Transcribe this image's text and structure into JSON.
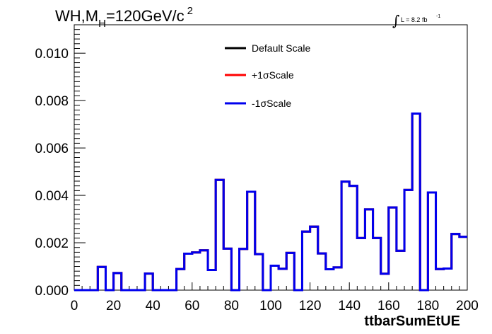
{
  "title": {
    "main": "WH,M",
    "sub": "H",
    "rest": "=120GeV/c",
    "sup": "2"
  },
  "lumi": {
    "symbol": "∫",
    "text": "L = 8.2 fb",
    "sup": "-1"
  },
  "chart_data": {
    "type": "histogram-step",
    "xlabel": "ttbarSumEtUE",
    "ylabel": "",
    "xlim": [
      0,
      200
    ],
    "ylim": [
      0,
      0.0112
    ],
    "x_ticks": [
      0,
      20,
      40,
      60,
      80,
      100,
      120,
      140,
      160,
      180,
      200
    ],
    "x_tick_labels": [
      "0",
      "20",
      "40",
      "60",
      "80",
      "100",
      "120",
      "140",
      "160",
      "180",
      "200"
    ],
    "y_ticks": [
      0,
      0.002,
      0.004,
      0.006,
      0.008,
      0.01
    ],
    "y_tick_labels": [
      "0.000",
      "0.002",
      "0.004",
      "0.006",
      "0.008",
      "0.010"
    ],
    "bin_width": 4,
    "bin_low_edges": [
      0,
      4,
      8,
      12,
      16,
      20,
      24,
      28,
      32,
      36,
      40,
      44,
      48,
      52,
      56,
      60,
      64,
      68,
      72,
      76,
      80,
      84,
      88,
      92,
      96,
      100,
      104,
      108,
      112,
      116,
      120,
      124,
      128,
      132,
      136,
      140,
      144,
      148,
      152,
      156,
      160,
      164,
      168,
      172,
      176,
      180,
      184,
      188,
      192,
      196
    ],
    "series": [
      {
        "name": "Default Scale",
        "color": "#000000",
        "values": [
          0,
          0,
          0,
          0.00098,
          0,
          0.00072,
          0,
          0,
          0,
          0.0007,
          0,
          0,
          0,
          0.00089,
          0.00154,
          0.00159,
          0.00168,
          0.00085,
          0.00465,
          0.00175,
          0,
          0.00174,
          0.00415,
          0.00152,
          0,
          0.00103,
          0.0009,
          0.00157,
          0,
          0.00247,
          0.00268,
          0.00155,
          0.00088,
          0.00096,
          0.00458,
          0.0044,
          0.0022,
          0.00341,
          0.0022,
          0.00069,
          0.00349,
          0.00166,
          0.00423,
          0.00745,
          0,
          0.00412,
          0.00089,
          0.00091,
          0.00237,
          0.00225
        ]
      },
      {
        "name": "+1σScale",
        "color": "#ff0000",
        "values": [
          0,
          0,
          0,
          0.00098,
          0,
          0.00072,
          0,
          0,
          0,
          0.0007,
          0,
          0,
          0,
          0.00089,
          0.00154,
          0.00159,
          0.00168,
          0.00085,
          0.00465,
          0.00175,
          0,
          0.00174,
          0.00415,
          0.00152,
          0,
          0.00103,
          0.0009,
          0.00157,
          0,
          0.00247,
          0.00268,
          0.00155,
          0.00088,
          0.00096,
          0.00458,
          0.0044,
          0.0022,
          0.00341,
          0.0022,
          0.00069,
          0.00349,
          0.00166,
          0.00423,
          0.00745,
          0,
          0.00412,
          0.00089,
          0.00091,
          0.00237,
          0.00225
        ]
      },
      {
        "name": "-1σScale",
        "color": "#0000ee",
        "values": [
          0,
          0,
          0,
          0.00098,
          0,
          0.00072,
          0,
          0,
          0,
          0.0007,
          0,
          0,
          0,
          0.00089,
          0.00154,
          0.00159,
          0.00168,
          0.00085,
          0.00465,
          0.00175,
          0,
          0.00174,
          0.00415,
          0.00152,
          0,
          0.00103,
          0.0009,
          0.00157,
          0,
          0.00247,
          0.00268,
          0.00155,
          0.00088,
          0.00096,
          0.00458,
          0.0044,
          0.0022,
          0.00341,
          0.0022,
          0.00069,
          0.00349,
          0.00166,
          0.00423,
          0.00745,
          0,
          0.00412,
          0.00089,
          0.00091,
          0.00237,
          0.00225
        ]
      }
    ],
    "legend_position": "top-center",
    "grid": false
  }
}
